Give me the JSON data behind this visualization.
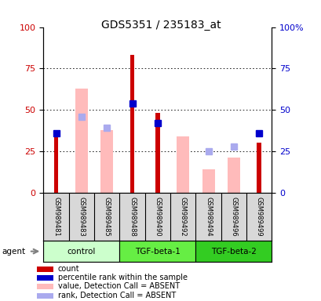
{
  "title": "GDS5351 / 235183_at",
  "samples": [
    "GSM989481",
    "GSM989483",
    "GSM989485",
    "GSM989488",
    "GSM989490",
    "GSM989492",
    "GSM989494",
    "GSM989496",
    "GSM989499"
  ],
  "groups": [
    {
      "label": "control",
      "color": "#ccffcc"
    },
    {
      "label": "TGF-beta-1",
      "color": "#66ee44"
    },
    {
      "label": "TGF-beta-2",
      "color": "#33cc22"
    }
  ],
  "group_sizes": [
    3,
    3,
    3
  ],
  "count_values": [
    37,
    0,
    0,
    83,
    48,
    0,
    0,
    0,
    30
  ],
  "rank_values": [
    36,
    0,
    0,
    54,
    42,
    0,
    0,
    0,
    36
  ],
  "absent_value_values": [
    0,
    63,
    38,
    0,
    0,
    34,
    14,
    21,
    0
  ],
  "absent_rank_values": [
    0,
    46,
    39,
    0,
    0,
    0,
    25,
    28,
    0
  ],
  "count_color": "#cc0000",
  "rank_color": "#0000cc",
  "absent_value_color": "#ffbbbb",
  "absent_rank_color": "#aaaaee",
  "ylim": [
    0,
    100
  ],
  "yticks": [
    0,
    25,
    50,
    75,
    100
  ],
  "ytick_labels_left": [
    "0",
    "25",
    "50",
    "75",
    "100"
  ],
  "ytick_labels_right": [
    "0",
    "25",
    "50",
    "75",
    "100%"
  ],
  "ylabel_left_color": "#cc0000",
  "ylabel_right_color": "#0000cc",
  "wide_bar_width": 0.5,
  "narrow_bar_width": 0.18,
  "marker_size": 6,
  "legend_items": [
    {
      "color": "#cc0000",
      "label": "count"
    },
    {
      "color": "#0000cc",
      "label": "percentile rank within the sample"
    },
    {
      "color": "#ffbbbb",
      "label": "value, Detection Call = ABSENT"
    },
    {
      "color": "#aaaaee",
      "label": "rank, Detection Call = ABSENT"
    }
  ]
}
